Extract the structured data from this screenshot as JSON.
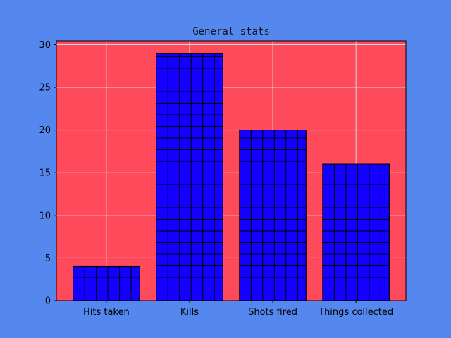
{
  "colors": {
    "figure_bg": "#5588ee",
    "plot_bg": "#ff4a5b",
    "bar_fill": "#1400ff",
    "bar_edge": "#000000",
    "grid": "#d7d7d7"
  },
  "chart_data": {
    "type": "bar",
    "title": "General stats",
    "xlabel": "",
    "ylabel": "",
    "categories": [
      "Hits taken",
      "Kills",
      "Shots fired",
      "Things collected"
    ],
    "values": [
      4,
      29,
      20,
      16
    ],
    "ylim": [
      0,
      30.45
    ],
    "yticks": [
      0,
      5,
      10,
      15,
      20,
      25,
      30
    ],
    "grid": true,
    "bar_hatch": "grid",
    "legend": false
  }
}
